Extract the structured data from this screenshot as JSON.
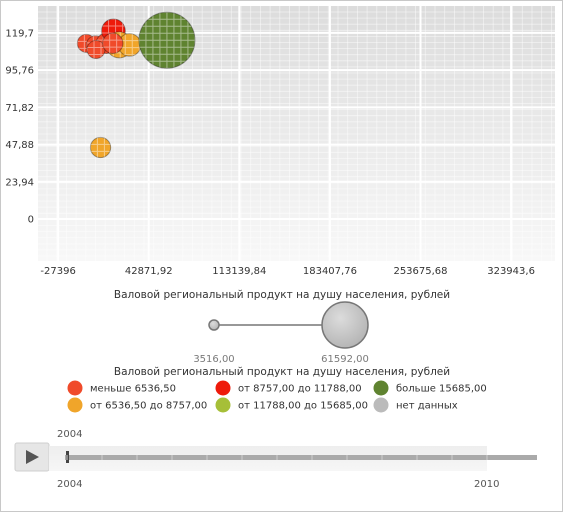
{
  "chart_data": {
    "type": "bubble",
    "xlabel": "Валовой региональный продукт на душу населения, рублей",
    "x_ticks": [
      "-27396",
      "42871,92",
      "113139,84",
      "183407,76",
      "253675,68",
      "323943,6"
    ],
    "y_ticks": [
      "0",
      "23,94",
      "47,88",
      "71,82",
      "95,76",
      "119,7"
    ],
    "xlim": [
      -43000,
      358000
    ],
    "ylim": [
      -27,
      137
    ],
    "points": [
      {
        "x": -5500,
        "y": 113,
        "size": 3516,
        "group": "less"
      },
      {
        "x": 1500,
        "y": 112,
        "size": 3516,
        "group": "less"
      },
      {
        "x": 10000,
        "y": 113,
        "size": 4500,
        "group": "less"
      },
      {
        "x": 2000,
        "y": 109,
        "size": 3516,
        "group": "less"
      },
      {
        "x": 15500,
        "y": 121,
        "size": 6000,
        "group": "g2"
      },
      {
        "x": 20000,
        "y": 112,
        "size": 7000,
        "group": "g1"
      },
      {
        "x": 28000,
        "y": 112,
        "size": 5500,
        "group": "g1"
      },
      {
        "x": 15000,
        "y": 113,
        "size": 4500,
        "group": "less"
      },
      {
        "x": 5500,
        "y": 46,
        "size": 4500,
        "group": "g1"
      },
      {
        "x": 57000,
        "y": 115,
        "size": 20000,
        "group": "more"
      }
    ],
    "size_legend": {
      "min_label": "3516,00",
      "max_label": "61592,00",
      "title": "Валовой региональный продукт на душу населения, рублей"
    },
    "legend": [
      {
        "key": "less",
        "label": "меньше 6536,50",
        "color": "#f04a2a"
      },
      {
        "key": "g1",
        "label": "от 6536,50 до 8757,00",
        "color": "#f0a52a"
      },
      {
        "key": "g2",
        "label": "от 8757,00 до 11788,00",
        "color": "#ee1a0a"
      },
      {
        "key": "g3",
        "label": "от 11788,00 до 15685,00",
        "color": "#a6bf38"
      },
      {
        "key": "more",
        "label": "больше 15685,00",
        "color": "#5f8330"
      },
      {
        "key": "nodata",
        "label": "нет данных",
        "color": "#bbbbbb"
      }
    ]
  },
  "timeline": {
    "current_year": "2004",
    "start_year": "2004",
    "end_year": "2010"
  }
}
